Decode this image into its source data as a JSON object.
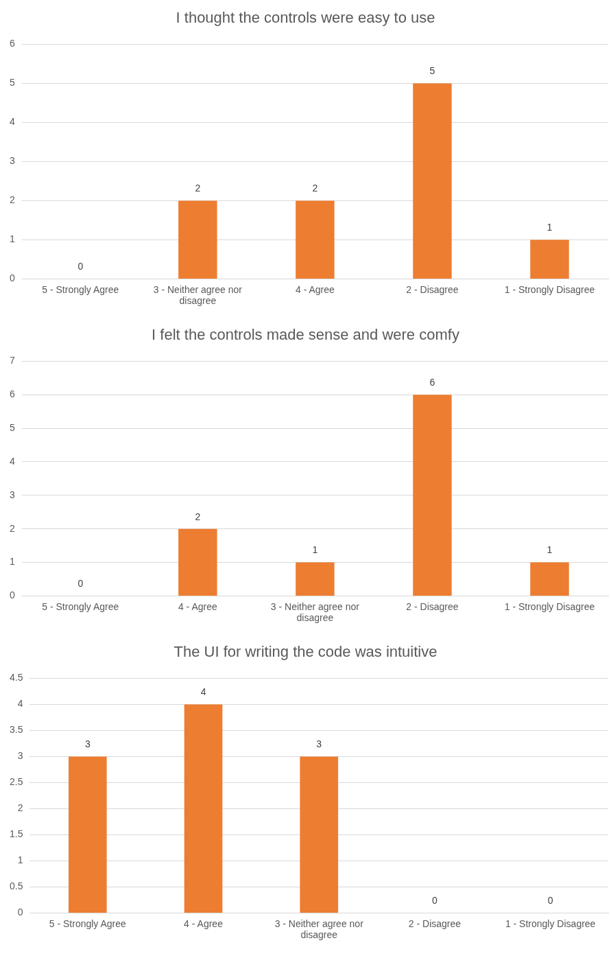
{
  "chart_data": [
    {
      "type": "bar",
      "title": "I thought the controls were easy to use",
      "categories": [
        "5 - Strongly Agree",
        "3 - Neither agree nor disagree",
        "4 - Agree",
        "2 - Disagree",
        "1 - Strongly Disagree"
      ],
      "values": [
        0,
        2,
        2,
        5,
        1
      ],
      "color": "#ed7d31",
      "ylim": [
        0,
        6
      ],
      "yticks": [
        0,
        1,
        2,
        3,
        4,
        5,
        6
      ],
      "grid": "y",
      "data_labels": true
    },
    {
      "type": "bar",
      "title": "I felt the controls made sense and were comfy",
      "categories": [
        "5 - Strongly Agree",
        "4 - Agree",
        "3 - Neither agree nor disagree",
        "2 - Disagree",
        "1 - Strongly Disagree"
      ],
      "values": [
        0,
        2,
        1,
        6,
        1
      ],
      "color": "#ed7d31",
      "ylim": [
        0,
        7
      ],
      "yticks": [
        0,
        1,
        2,
        3,
        4,
        5,
        6,
        7
      ],
      "grid": "y",
      "data_labels": true
    },
    {
      "type": "bar",
      "title": "The UI for writing the code was intuitive",
      "categories": [
        "5 - Strongly Agree",
        "4 - Agree",
        "3 - Neither agree nor disagree",
        "2 - Disagree",
        "1 - Strongly Disagree"
      ],
      "values": [
        3,
        4,
        3,
        0,
        0
      ],
      "color": "#ed7d31",
      "ylim": [
        0,
        4.5
      ],
      "yticks": [
        0,
        0.5,
        1,
        1.5,
        2,
        2.5,
        3,
        3.5,
        4,
        4.5
      ],
      "grid": "y",
      "data_labels": true
    }
  ]
}
